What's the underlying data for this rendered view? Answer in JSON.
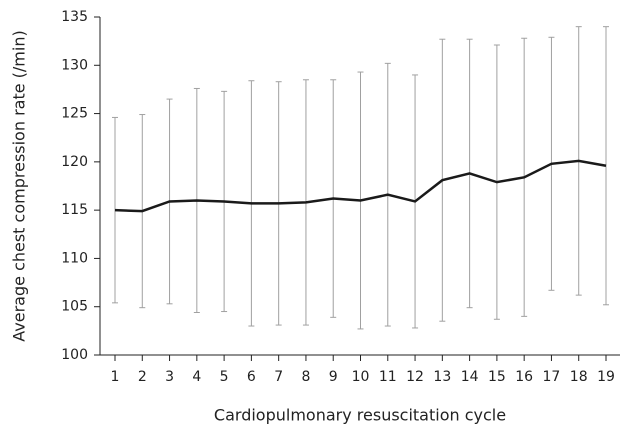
{
  "chart_data": {
    "type": "line",
    "x_label": "Cardiopulmonary resuscitation cycle",
    "y_label": "Average chest compression rate (/min)",
    "categories": [
      "1",
      "2",
      "3",
      "4",
      "5",
      "6",
      "7",
      "8",
      "9",
      "10",
      "11",
      "12",
      "13",
      "14",
      "15",
      "16",
      "17",
      "18",
      "19"
    ],
    "series": [
      {
        "color": "#1a1a1a",
        "values": [
          115.0,
          114.9,
          115.9,
          116.0,
          115.9,
          115.7,
          115.7,
          115.8,
          116.2,
          116.0,
          116.6,
          115.9,
          118.1,
          118.8,
          117.9,
          118.4,
          119.8,
          120.1,
          119.6
        ],
        "errors": [
          9.6,
          10.0,
          10.6,
          11.6,
          11.4,
          12.7,
          12.6,
          12.7,
          12.3,
          13.3,
          13.6,
          13.1,
          14.6,
          13.9,
          14.2,
          14.4,
          13.1,
          13.9,
          14.4
        ]
      }
    ],
    "error_color": "#a0a0a0",
    "ylim": [
      100,
      135
    ],
    "yticks": [
      100,
      105,
      110,
      115,
      120,
      125,
      130,
      135
    ]
  }
}
